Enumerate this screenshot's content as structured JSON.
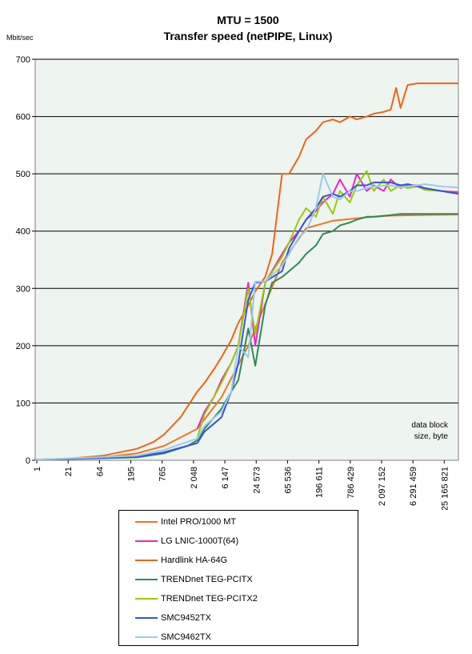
{
  "chart_data": {
    "type": "line",
    "title": "MTU = 1500",
    "subtitle": "Transfer speed (netPIPE, Linux)",
    "ylabel": "Mbit/sec",
    "xlabel": "data block size, byte",
    "ylim": [
      0,
      700
    ],
    "yticks": [
      0,
      100,
      200,
      300,
      400,
      500,
      600,
      700
    ],
    "x_scale": "log",
    "xlim": [
      1,
      33554432
    ],
    "x_tick_labels": [
      "1",
      "21",
      "64",
      "195",
      "765",
      "2 048",
      "6 147",
      "24 573",
      "65 536",
      "196 611",
      "786 429",
      "2 097 152",
      "6 291 459",
      "25 165 821"
    ],
    "grid": "horizontal",
    "plot_background": "#eef4ef",
    "series": [
      {
        "name": "Intel PRO/1000 MT",
        "color": "#ee7722",
        "x": [
          1,
          4,
          16,
          64,
          195,
          765,
          2048,
          6147,
          24573,
          65536,
          196611,
          786429,
          2097152,
          6291459,
          33554432
        ],
        "y": [
          1,
          2,
          5,
          12,
          25,
          55,
          110,
          200,
          345,
          405,
          418,
          424,
          427,
          428,
          429
        ]
      },
      {
        "name": "LG LNIC-1000T(64)",
        "color": "#ee22cc",
        "x": [
          765,
          1024,
          1500,
          2048,
          3072,
          4096,
          6147,
          8192,
          12288,
          24573,
          32768,
          49152,
          65536,
          98304,
          131072,
          196611,
          262144,
          393216,
          524288,
          786429,
          1048576,
          1572864,
          2097152,
          3145728,
          4194304,
          6291459,
          8388608,
          16777216,
          33554432
        ],
        "y": [
          55,
          85,
          110,
          140,
          170,
          200,
          310,
          200,
          310,
          360,
          380,
          400,
          420,
          435,
          450,
          465,
          490,
          460,
          500,
          470,
          480,
          470,
          490,
          475,
          480,
          480,
          475,
          470,
          468
        ]
      },
      {
        "name": "Hardlink HA-64G",
        "color": "#ee6611",
        "x": [
          1,
          4,
          16,
          64,
          128,
          195,
          384,
          765,
          1024,
          1536,
          2048,
          3072,
          4096,
          6147,
          8192,
          12288,
          16384,
          24573,
          32768,
          49152,
          65536,
          98304,
          131072,
          196611,
          262144,
          393216,
          524288,
          786429,
          1048576,
          1572864,
          2097152,
          2621440,
          3145728,
          4194304,
          6291459,
          33554432
        ],
        "y": [
          1,
          3,
          8,
          20,
          32,
          45,
          75,
          120,
          135,
          160,
          180,
          210,
          240,
          270,
          295,
          320,
          360,
          500,
          500,
          530,
          560,
          575,
          590,
          595,
          590,
          600,
          595,
          600,
          605,
          608,
          612,
          650,
          615,
          655,
          658,
          658
        ]
      },
      {
        "name": "TRENDnet TEG-PCITX",
        "color": "#2e8b57",
        "x": [
          1,
          64,
          195,
          512,
          765,
          1024,
          2048,
          3072,
          4096,
          6147,
          8192,
          12288,
          16384,
          24573,
          32768,
          49152,
          65536,
          98304,
          131072,
          196611,
          262144,
          393216,
          524288,
          786429,
          1048576,
          2097152,
          3145728,
          6291459,
          33554432
        ],
        "y": [
          1,
          5,
          12,
          25,
          35,
          55,
          90,
          120,
          140,
          230,
          165,
          270,
          310,
          320,
          330,
          345,
          360,
          375,
          395,
          400,
          410,
          415,
          420,
          425,
          425,
          428,
          430,
          430,
          430
        ]
      },
      {
        "name": "TRENDnet TEG-PCITX2",
        "color": "#99cc00",
        "x": [
          765,
          1024,
          1500,
          2048,
          3072,
          4096,
          6147,
          8192,
          12288,
          24573,
          32768,
          49152,
          65536,
          98304,
          131072,
          196611,
          262144,
          393216,
          524288,
          786429,
          1048576,
          1572864,
          2097152,
          3145728,
          4194304,
          6291459,
          8388608,
          16777216,
          33554432
        ],
        "y": [
          40,
          80,
          110,
          135,
          170,
          200,
          300,
          220,
          310,
          355,
          380,
          420,
          440,
          425,
          460,
          430,
          470,
          450,
          480,
          505,
          470,
          490,
          470,
          480,
          475,
          478,
          472,
          470,
          465
        ]
      },
      {
        "name": "SMC9452TX",
        "color": "#3355dd",
        "x": [
          1,
          64,
          195,
          765,
          1024,
          2048,
          3072,
          4096,
          6147,
          8192,
          12288,
          24573,
          32768,
          49152,
          65536,
          98304,
          131072,
          196611,
          262144,
          393216,
          524288,
          786429,
          1048576,
          2097152,
          3145728,
          4194304,
          6291459,
          8388608,
          16777216,
          33554432
        ],
        "y": [
          1,
          6,
          14,
          30,
          50,
          75,
          120,
          170,
          280,
          310,
          312,
          330,
          370,
          400,
          420,
          440,
          460,
          465,
          460,
          470,
          480,
          480,
          485,
          485,
          480,
          482,
          478,
          475,
          470,
          465
        ]
      },
      {
        "name": "SMC9462TX",
        "color": "#99ccee",
        "x": [
          1,
          64,
          195,
          765,
          1024,
          2048,
          3072,
          4096,
          6147,
          8192,
          12288,
          24573,
          32768,
          49152,
          65536,
          98304,
          131072,
          196611,
          262144,
          393216,
          524288,
          786429,
          1048576,
          2097152,
          3145728,
          4194304,
          6291459,
          8388608,
          16777216,
          33554432
        ],
        "y": [
          1,
          8,
          18,
          38,
          60,
          85,
          120,
          200,
          180,
          312,
          312,
          340,
          360,
          390,
          400,
          440,
          500,
          460,
          455,
          470,
          470,
          475,
          478,
          480,
          476,
          478,
          480,
          482,
          478,
          476
        ]
      }
    ]
  }
}
